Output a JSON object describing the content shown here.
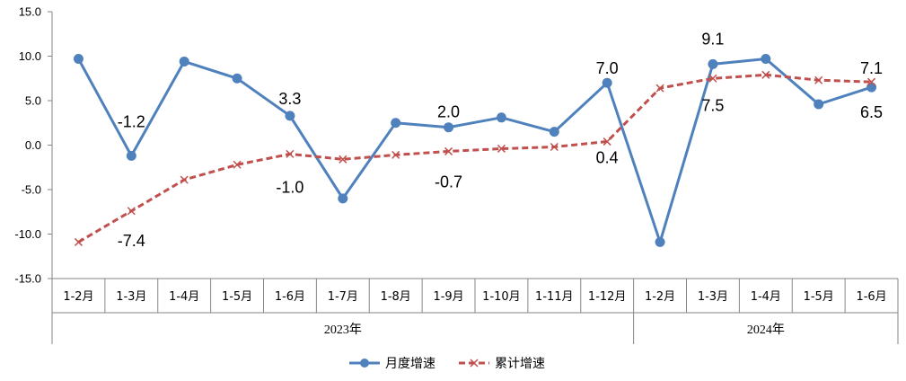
{
  "chart_data": {
    "type": "line",
    "title": "",
    "xlabel": "",
    "ylabel": "",
    "ylim": [
      -15.0,
      15.0
    ],
    "ytick_step": 5,
    "y_ticks": [
      "15.0",
      "10.0",
      "5.0",
      "0.0",
      "-5.0",
      "-10.0",
      "-15.0"
    ],
    "categories": [
      "1-2月",
      "1-3月",
      "1-4月",
      "1-5月",
      "1-6月",
      "1-7月",
      "1-8月",
      "1-9月",
      "1-10月",
      "1-11月",
      "1-12月",
      "1-2月",
      "1-3月",
      "1-4月",
      "1-5月",
      "1-6月"
    ],
    "groups": [
      {
        "label": "2023年",
        "start": 0,
        "end": 10
      },
      {
        "label": "2024年",
        "start": 11,
        "end": 15
      }
    ],
    "series": [
      {
        "name": "月度增速",
        "color": "#4F81BD",
        "marker": "circle",
        "line_style": "solid",
        "values": [
          9.7,
          -1.2,
          9.4,
          7.5,
          3.3,
          -6.0,
          2.5,
          2.0,
          3.1,
          1.5,
          7.0,
          -10.9,
          9.1,
          9.7,
          4.6,
          6.5
        ],
        "labels": [
          {
            "index": 1,
            "text": "-1.2"
          },
          {
            "index": 4,
            "text": "3.3"
          },
          {
            "index": 7,
            "text": "2.0"
          },
          {
            "index": 10,
            "text": "7.0"
          },
          {
            "index": 12,
            "text": "9.1"
          },
          {
            "index": 15,
            "text": "6.5"
          }
        ]
      },
      {
        "name": "累计增速",
        "color": "#C0504D",
        "marker": "x",
        "line_style": "dashed",
        "values": [
          -10.9,
          -7.4,
          -3.9,
          -2.2,
          -1.0,
          -1.6,
          -1.1,
          -0.7,
          -0.4,
          -0.2,
          0.4,
          6.4,
          7.5,
          7.9,
          7.3,
          7.1
        ],
        "labels": [
          {
            "index": 1,
            "text": "-7.4"
          },
          {
            "index": 4,
            "text": "-1.0"
          },
          {
            "index": 7,
            "text": "-0.7"
          },
          {
            "index": 10,
            "text": "0.4"
          },
          {
            "index": 12,
            "text": "7.5"
          },
          {
            "index": 15,
            "text": "7.1"
          }
        ]
      }
    ],
    "grid": false,
    "legend": {
      "position": "bottom",
      "entries": [
        "月度增速",
        "累计增速"
      ]
    }
  }
}
